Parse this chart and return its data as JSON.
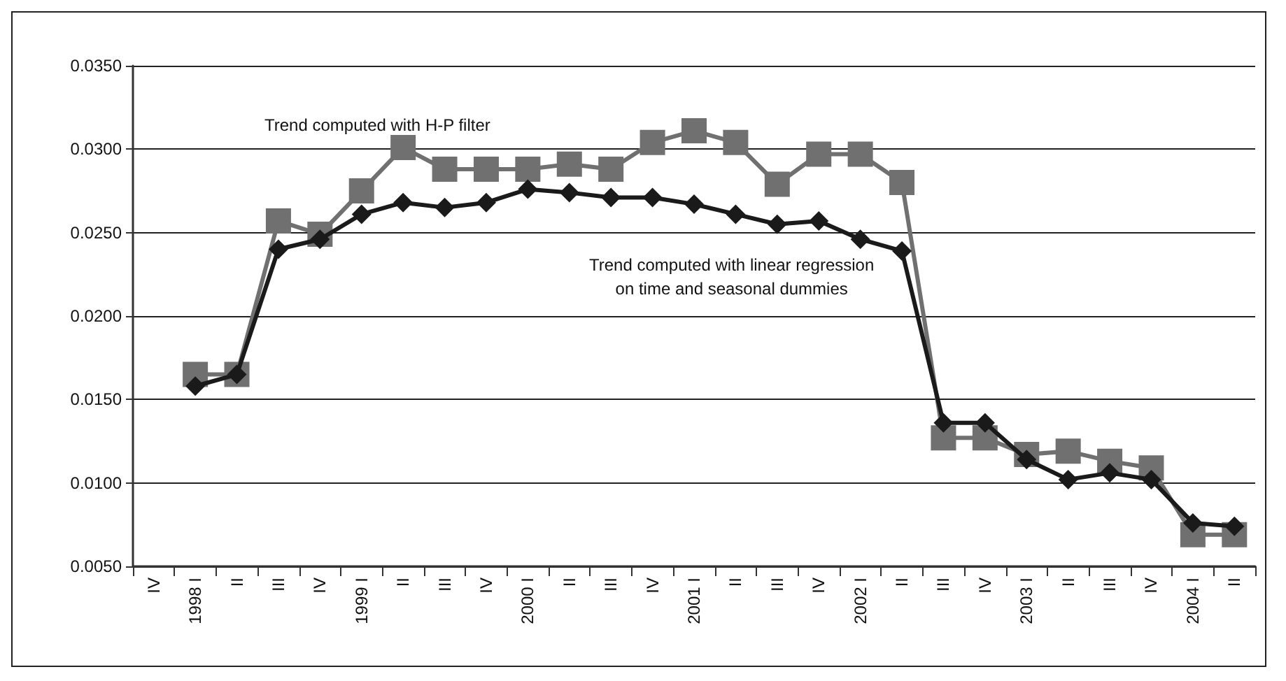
{
  "chart_data": {
    "type": "line",
    "categories": [
      "IV",
      "1998 I",
      "II",
      "III",
      "IV",
      "1999 I",
      "II",
      "III",
      "IV",
      "2000 I",
      "II",
      "III",
      "IV",
      "2001 I",
      "II",
      "III",
      "IV",
      "2002 I",
      "II",
      "III",
      "IV",
      "2003 I",
      "II",
      "III",
      "IV",
      "2004 I",
      "II"
    ],
    "series": [
      {
        "color": "#707070",
        "marker": "square",
        "values": [
          null,
          0.0165,
          0.0165,
          0.0257,
          0.0249,
          0.0275,
          0.0301,
          0.0288,
          0.0288,
          0.0288,
          0.0291,
          0.0288,
          0.0304,
          0.0311,
          0.0304,
          0.0279,
          0.0297,
          0.0297,
          0.028,
          0.0127,
          0.0127,
          0.0117,
          0.0119,
          0.0113,
          0.0109,
          0.0069,
          0.0069
        ]
      },
      {
        "color": "#1a1a1a",
        "marker": "diamond",
        "values": [
          null,
          0.0158,
          0.0165,
          0.024,
          0.0246,
          0.0261,
          0.0268,
          0.0265,
          0.0268,
          0.0276,
          0.0274,
          0.0271,
          0.0271,
          0.0267,
          0.0261,
          0.0255,
          0.0257,
          0.0246,
          0.0239,
          0.0136,
          0.0136,
          0.0114,
          0.0102,
          0.0106,
          0.0102,
          0.0076,
          0.0074
        ]
      }
    ],
    "ylim": [
      0.005,
      0.035
    ],
    "yticks": [
      {
        "value": 0.005,
        "label": "0.0050"
      },
      {
        "value": 0.01,
        "label": "0.0100"
      },
      {
        "value": 0.015,
        "label": "0.0150"
      },
      {
        "value": 0.02,
        "label": "0.0200"
      },
      {
        "value": 0.025,
        "label": "0.0250"
      },
      {
        "value": 0.03,
        "label": "0.0300"
      },
      {
        "value": 0.035,
        "label": "0.0350"
      }
    ],
    "grid": "y",
    "annotations": [
      "Trend computed with H-P filter",
      "Trend computed with linear regression\non time and seasonal dummies"
    ]
  }
}
